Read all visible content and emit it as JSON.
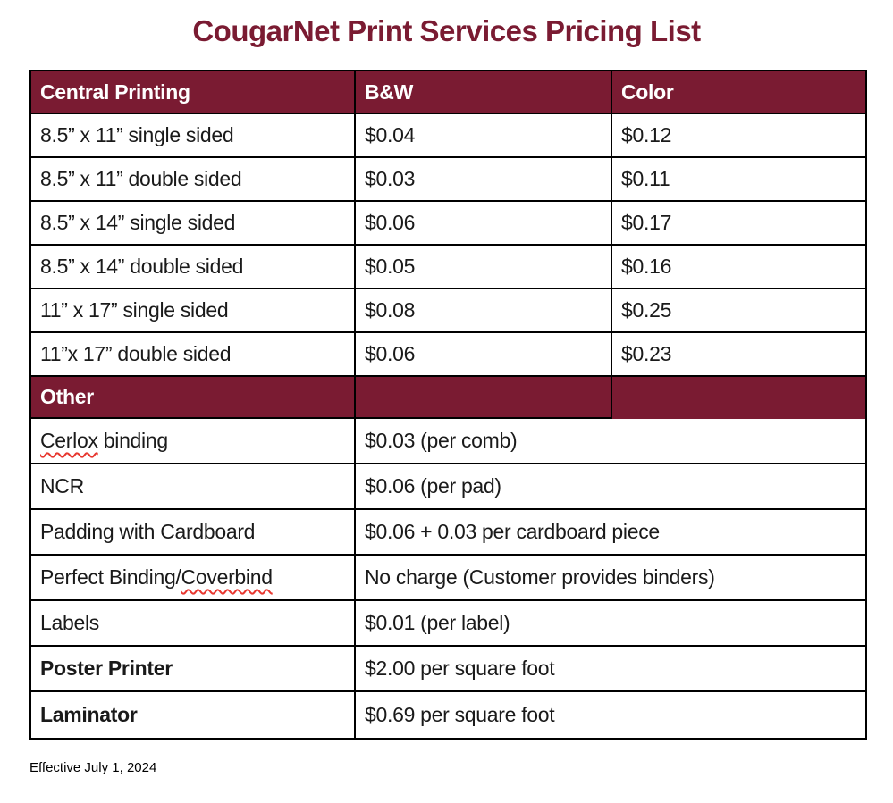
{
  "title": "CougarNet Print Services Pricing List",
  "footer_note": "Effective July 1, 2024",
  "colors": {
    "maroon": "#7A1B32",
    "border": "#000000",
    "header_text": "#FFFFFF",
    "body_text": "#1A1A1A",
    "misspell_red": "#E7372F",
    "background": "#FFFFFF"
  },
  "table": {
    "headers": [
      "Central Printing",
      "B&W",
      "Color"
    ],
    "central_rows": [
      {
        "label": "8.5” x 11” single sided",
        "bw": "$0.04",
        "color": "$0.12"
      },
      {
        "label": "8.5” x 11” double sided",
        "bw": "$0.03",
        "color": "$0.11"
      },
      {
        "label": "8.5” x 14” single sided",
        "bw": "$0.06",
        "color": "$0.17"
      },
      {
        "label": "8.5” x 14” double sided",
        "bw": "$0.05",
        "color": "$0.16"
      },
      {
        "label": "11” x 17” single sided",
        "bw": "$0.08",
        "color": "$0.25"
      },
      {
        "label": "11”x 17” double sided",
        "bw": "$0.06",
        "color": "$0.23"
      }
    ],
    "other_header": "Other",
    "other_rows": [
      {
        "parts": [
          {
            "text": "Cerlox",
            "misspelled": true
          },
          {
            "text": " binding"
          }
        ],
        "value": "$0.03 (per comb)",
        "bold": false
      },
      {
        "parts": [
          {
            "text": "NCR"
          }
        ],
        "value": "$0.06 (per pad)",
        "bold": false
      },
      {
        "parts": [
          {
            "text": "Padding with Cardboard"
          }
        ],
        "value": "$0.06 + 0.03 per cardboard piece",
        "bold": false
      },
      {
        "parts": [
          {
            "text": "Perfect Binding/"
          },
          {
            "text": "Coverbind",
            "misspelled": true
          }
        ],
        "value": "No charge (Customer provides binders)",
        "bold": false
      },
      {
        "parts": [
          {
            "text": "Labels"
          }
        ],
        "value": "$0.01 (per label)",
        "bold": false
      },
      {
        "parts": [
          {
            "text": "Poster Printer"
          }
        ],
        "value": "$2.00 per square foot",
        "bold": true
      },
      {
        "parts": [
          {
            "text": "Laminator"
          }
        ],
        "value": "$0.69 per square foot",
        "bold": true
      }
    ]
  }
}
